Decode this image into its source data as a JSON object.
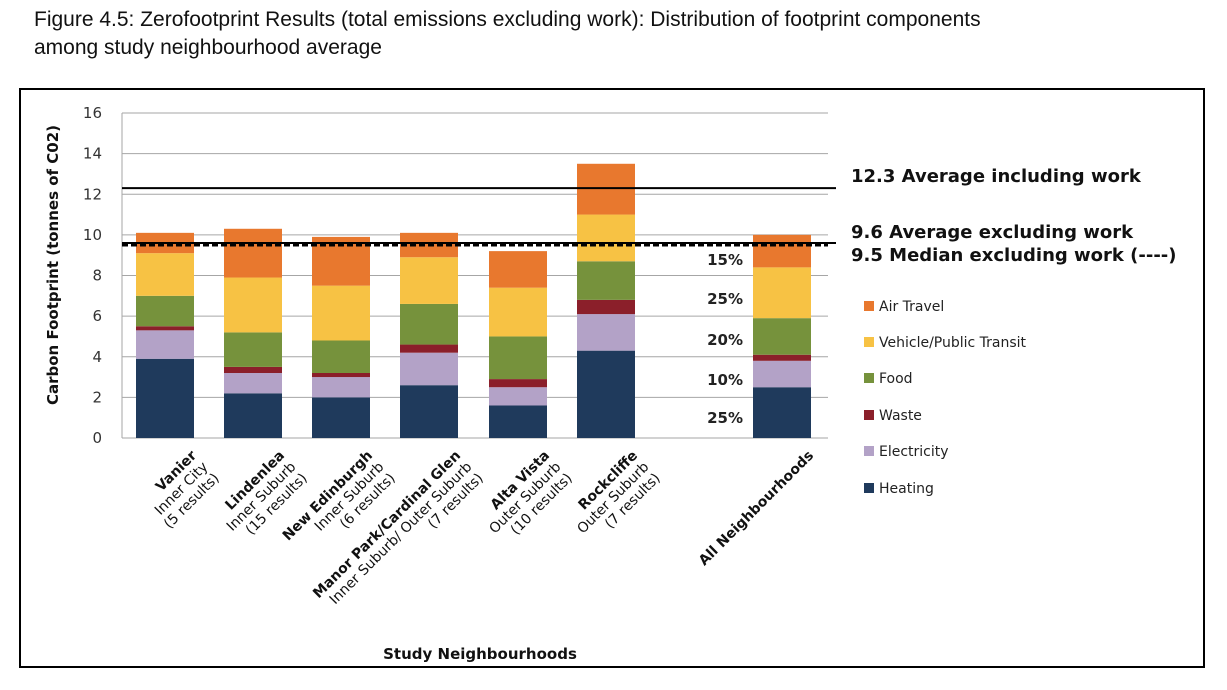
{
  "caption": {
    "line1": "Figure 4.5: Zerofootprint Results (total emissions excluding work): Distribution of footprint components",
    "line2": "among study neighbourhood average"
  },
  "chart_data": {
    "type": "bar",
    "stacked": true,
    "ylabel": "Carbon Footprint (tonnes of C02)",
    "xlabel": "Study Neighbourhoods",
    "ylim": [
      0,
      16
    ],
    "yticks": [
      0,
      2,
      4,
      6,
      8,
      10,
      12,
      14,
      16
    ],
    "grid": true,
    "legend_position": "right",
    "categories": [
      {
        "name": "Vanier",
        "sub1": "Inner City",
        "sub2": "(5 results)"
      },
      {
        "name": "Lindenlea",
        "sub1": "Inner Suburb",
        "sub2": "(15 results)"
      },
      {
        "name": "New Edinburgh",
        "sub1": "Inner Suburb",
        "sub2": "(6 results)"
      },
      {
        "name": "Manor Park/Cardinal Glen",
        "sub1": "Inner Suburb/ Outer Suburb",
        "sub2": "(7 results)"
      },
      {
        "name": "Alta Vista",
        "sub1": "Outer Suburb",
        "sub2": "(10 results)"
      },
      {
        "name": "Rockcliffe",
        "sub1": "Outer Suburb",
        "sub2": "(7 results)"
      },
      {
        "name": "All Neighbourhoods",
        "sub1": "",
        "sub2": ""
      }
    ],
    "series": [
      {
        "name": "Heating",
        "color": "#1f3a5c",
        "values": [
          3.9,
          2.2,
          2.0,
          2.6,
          1.6,
          4.3,
          2.5
        ]
      },
      {
        "name": "Electricity",
        "color": "#b3a2c7",
        "values": [
          1.4,
          1.0,
          1.0,
          1.6,
          0.9,
          1.8,
          1.3
        ]
      },
      {
        "name": "Waste",
        "color": "#8b1f2a",
        "values": [
          0.2,
          0.3,
          0.2,
          0.4,
          0.4,
          0.7,
          0.3
        ]
      },
      {
        "name": "Food",
        "color": "#76923c",
        "values": [
          1.5,
          1.7,
          1.6,
          2.0,
          2.1,
          1.9,
          1.8
        ]
      },
      {
        "name": "Vehicle/Public Transit",
        "color": "#f7c244",
        "values": [
          2.1,
          2.7,
          2.7,
          2.3,
          2.4,
          2.3,
          2.5
        ]
      },
      {
        "name": "Air Travel",
        "color": "#e8782e",
        "values": [
          1.0,
          2.4,
          2.4,
          1.2,
          1.8,
          2.5,
          1.6
        ]
      }
    ],
    "reference_lines": [
      {
        "value": 12.3,
        "label": "12.3 Average including work",
        "style": "solid"
      },
      {
        "value": 9.6,
        "label": "9.6 Average excluding work",
        "style": "solid"
      },
      {
        "value": 9.5,
        "label": "9.5 Median excluding work (----)",
        "style": "dashed"
      }
    ],
    "percent_labels": [
      "15%",
      "25%",
      "20%",
      "10%",
      "25%"
    ]
  }
}
